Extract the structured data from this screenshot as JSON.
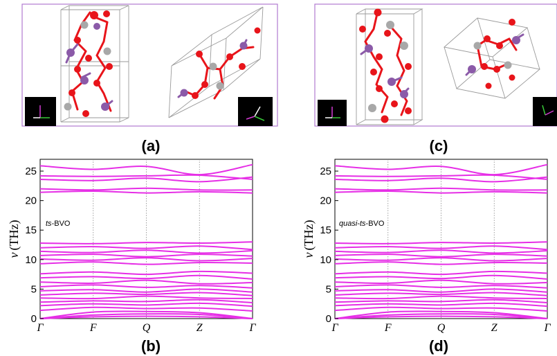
{
  "panels": {
    "a": {
      "label": "(a)"
    },
    "b": {
      "label": "(b)"
    },
    "c": {
      "label": "(c)"
    },
    "d": {
      "label": "(d)"
    }
  },
  "colors": {
    "band": "#e62ee6",
    "oxygen": "#e8141a",
    "vanadium": "#8b5aa8",
    "bismuth": "#a8a8a8",
    "frame": "#b07ad0"
  },
  "chart_data": [
    {
      "type": "line",
      "panel": "(b)",
      "annotation_prefix": "ts",
      "annotation_suffix": "-BVO",
      "ylabel_symbol": "ν",
      "ylabel_unit": "(THz)",
      "ylim": [
        0,
        27
      ],
      "yticks": [
        0,
        5,
        10,
        15,
        20,
        25
      ],
      "x_ticks": [
        "Γ",
        "F",
        "Q",
        "Z",
        "Γ"
      ],
      "grid": "vertical dotted lines at high-symmetry points",
      "series": [
        {
          "values": [
            21.4,
            21.6,
            21.3,
            21.5,
            21.3
          ]
        },
        {
          "values": [
            22.0,
            21.8,
            22.1,
            21.8,
            21.8
          ]
        },
        {
          "values": [
            23.6,
            23.4,
            23.8,
            23.2,
            24.0
          ]
        },
        {
          "values": [
            24.2,
            24.1,
            24.2,
            24.3,
            23.6
          ]
        },
        {
          "values": [
            25.9,
            25.3,
            25.8,
            24.4,
            26.1
          ]
        },
        {
          "values": [
            12.8,
            12.7,
            12.9,
            12.8,
            13.0
          ]
        },
        {
          "values": [
            12.0,
            12.2,
            11.9,
            12.3,
            11.7
          ]
        },
        {
          "values": [
            11.4,
            11.2,
            11.6,
            11.1,
            11.5
          ]
        },
        {
          "values": [
            10.7,
            10.9,
            10.5,
            10.9,
            10.6
          ]
        },
        {
          "values": [
            10.1,
            9.9,
            10.3,
            9.8,
            10.2
          ]
        },
        {
          "values": [
            9.3,
            9.6,
            9.2,
            9.5,
            9.4
          ]
        },
        {
          "values": [
            7.6,
            7.9,
            7.5,
            8.0,
            7.7
          ]
        },
        {
          "values": [
            6.9,
            7.1,
            6.8,
            7.3,
            6.7
          ]
        },
        {
          "values": [
            6.2,
            6.0,
            6.5,
            5.9,
            6.1
          ]
        },
        {
          "values": [
            5.4,
            5.7,
            5.3,
            5.6,
            5.2
          ]
        },
        {
          "values": [
            4.7,
            4.9,
            4.5,
            5.0,
            4.5
          ]
        },
        {
          "values": [
            4.0,
            4.3,
            4.1,
            4.4,
            3.9
          ]
        },
        {
          "values": [
            3.5,
            3.4,
            3.8,
            3.5,
            3.4
          ]
        },
        {
          "values": [
            2.8,
            3.0,
            2.9,
            3.2,
            2.7
          ]
        },
        {
          "values": [
            2.2,
            2.5,
            2.3,
            2.6,
            2.1
          ]
        },
        {
          "values": [
            1.4,
            1.9,
            1.7,
            1.8,
            1.3
          ]
        },
        {
          "values": [
            0.0,
            1.1,
            1.2,
            1.0,
            0.0
          ]
        },
        {
          "values": [
            0.0,
            0.6,
            0.8,
            0.7,
            0.0
          ]
        },
        {
          "values": [
            0.0,
            0.3,
            0.4,
            0.3,
            0.0
          ]
        }
      ]
    },
    {
      "type": "line",
      "panel": "(d)",
      "annotation_prefix": "quasi-ts",
      "annotation_suffix": "-BVO",
      "ylabel_symbol": "ν",
      "ylabel_unit": "(THz)",
      "ylim": [
        0,
        27
      ],
      "yticks": [
        0,
        5,
        10,
        15,
        20,
        25
      ],
      "x_ticks": [
        "Γ",
        "F",
        "Q",
        "Z",
        "Γ"
      ],
      "grid": "vertical dotted lines at high-symmetry points",
      "series": [
        {
          "values": [
            21.4,
            21.6,
            21.3,
            21.5,
            21.3
          ]
        },
        {
          "values": [
            22.0,
            21.8,
            22.1,
            21.8,
            21.8
          ]
        },
        {
          "values": [
            23.6,
            23.4,
            23.8,
            23.2,
            24.0
          ]
        },
        {
          "values": [
            24.2,
            24.1,
            24.2,
            24.3,
            23.6
          ]
        },
        {
          "values": [
            25.9,
            25.3,
            25.8,
            24.4,
            26.1
          ]
        },
        {
          "values": [
            12.8,
            12.7,
            12.9,
            12.8,
            13.0
          ]
        },
        {
          "values": [
            12.0,
            12.2,
            11.9,
            12.3,
            11.7
          ]
        },
        {
          "values": [
            11.4,
            11.2,
            11.6,
            11.1,
            11.5
          ]
        },
        {
          "values": [
            10.7,
            10.9,
            10.5,
            10.9,
            10.6
          ]
        },
        {
          "values": [
            10.1,
            9.9,
            10.3,
            9.8,
            10.2
          ]
        },
        {
          "values": [
            9.3,
            9.6,
            9.2,
            9.5,
            9.4
          ]
        },
        {
          "values": [
            7.6,
            7.9,
            7.5,
            8.0,
            7.7
          ]
        },
        {
          "values": [
            6.9,
            7.1,
            6.8,
            7.3,
            6.7
          ]
        },
        {
          "values": [
            6.2,
            6.0,
            6.5,
            5.9,
            6.1
          ]
        },
        {
          "values": [
            5.4,
            5.7,
            5.3,
            5.6,
            5.2
          ]
        },
        {
          "values": [
            4.7,
            4.9,
            4.5,
            5.0,
            4.5
          ]
        },
        {
          "values": [
            4.0,
            4.3,
            4.1,
            4.4,
            3.9
          ]
        },
        {
          "values": [
            3.5,
            3.4,
            3.8,
            3.5,
            3.4
          ]
        },
        {
          "values": [
            2.8,
            3.0,
            2.9,
            3.2,
            2.7
          ]
        },
        {
          "values": [
            2.2,
            2.5,
            2.3,
            2.6,
            2.1
          ]
        },
        {
          "values": [
            1.4,
            1.9,
            1.7,
            1.8,
            1.3
          ]
        },
        {
          "values": [
            0.0,
            1.1,
            1.2,
            1.0,
            0.0
          ]
        },
        {
          "values": [
            0.0,
            0.6,
            0.8,
            0.7,
            0.0
          ]
        },
        {
          "values": [
            0.0,
            0.3,
            0.4,
            0.3,
            0.0
          ]
        }
      ]
    }
  ]
}
